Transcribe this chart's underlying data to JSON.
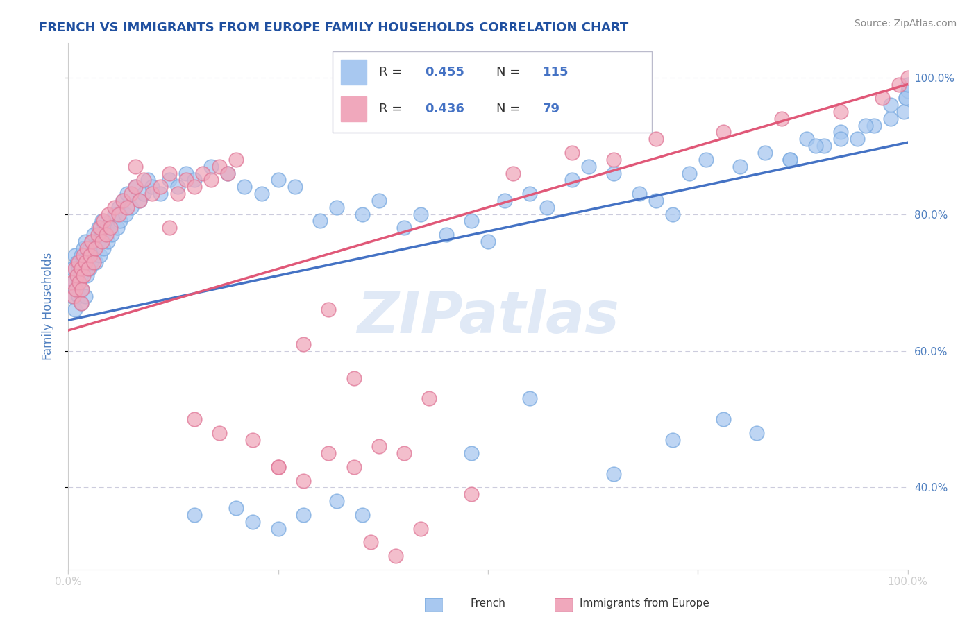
{
  "title": "FRENCH VS IMMIGRANTS FROM EUROPE FAMILY HOUSEHOLDS CORRELATION CHART",
  "source": "Source: ZipAtlas.com",
  "ylabel": "Family Households",
  "xlim": [
    0.0,
    1.0
  ],
  "ylim": [
    0.28,
    1.05
  ],
  "x_tick_labels": [
    "0.0%",
    "",
    "",
    "",
    "100.0%"
  ],
  "x_tick_vals": [
    0.0,
    0.25,
    0.5,
    0.75,
    1.0
  ],
  "y_tick_labels_right": [
    "40.0%",
    "60.0%",
    "80.0%",
    "100.0%"
  ],
  "y_tick_vals_right": [
    0.4,
    0.6,
    0.8,
    1.0
  ],
  "blue_color": "#A8C8F0",
  "pink_color": "#F0A8BC",
  "blue_line_color": "#4472C4",
  "pink_line_color": "#E05878",
  "blue_edge_color": "#7AAAE0",
  "pink_edge_color": "#E07898",
  "watermark_color": "#C8D8F0",
  "title_color": "#2050A0",
  "axis_label_color": "#5080C0",
  "source_color": "#888888",
  "legend_text_color": "#333333",
  "legend_value_color": "#4472C4",
  "grid_color": "#CCCCDD",
  "spine_color": "#CCCCCC",
  "blue_scatter_x": [
    0.005,
    0.005,
    0.007,
    0.008,
    0.008,
    0.009,
    0.01,
    0.01,
    0.012,
    0.012,
    0.013,
    0.015,
    0.015,
    0.015,
    0.016,
    0.018,
    0.018,
    0.02,
    0.02,
    0.02,
    0.022,
    0.022,
    0.025,
    0.025,
    0.027,
    0.028,
    0.03,
    0.03,
    0.032,
    0.033,
    0.035,
    0.036,
    0.038,
    0.04,
    0.04,
    0.042,
    0.045,
    0.047,
    0.05,
    0.052,
    0.055,
    0.058,
    0.06,
    0.062,
    0.065,
    0.068,
    0.07,
    0.075,
    0.08,
    0.085,
    0.09,
    0.095,
    0.1,
    0.11,
    0.12,
    0.13,
    0.14,
    0.15,
    0.17,
    0.19,
    0.21,
    0.23,
    0.25,
    0.27,
    0.3,
    0.32,
    0.35,
    0.37,
    0.4,
    0.42,
    0.45,
    0.48,
    0.5,
    0.52,
    0.55,
    0.57,
    0.6,
    0.62,
    0.65,
    0.68,
    0.7,
    0.72,
    0.74,
    0.76,
    0.8,
    0.83,
    0.86,
    0.88,
    0.9,
    0.92,
    0.94,
    0.96,
    0.98,
    0.995,
    0.998,
    1.0,
    0.15,
    0.2,
    0.22,
    0.25,
    0.28,
    0.32,
    0.35,
    0.48,
    0.55,
    0.65,
    0.72,
    0.78,
    0.82,
    0.86,
    0.89,
    0.92,
    0.95,
    0.98,
    0.998,
    1.0
  ],
  "blue_scatter_y": [
    0.68,
    0.72,
    0.7,
    0.66,
    0.74,
    0.69,
    0.71,
    0.73,
    0.68,
    0.72,
    0.7,
    0.67,
    0.71,
    0.74,
    0.69,
    0.72,
    0.75,
    0.68,
    0.73,
    0.76,
    0.71,
    0.74,
    0.72,
    0.75,
    0.73,
    0.76,
    0.74,
    0.77,
    0.75,
    0.73,
    0.76,
    0.78,
    0.74,
    0.77,
    0.79,
    0.75,
    0.78,
    0.76,
    0.79,
    0.77,
    0.8,
    0.78,
    0.81,
    0.79,
    0.82,
    0.8,
    0.83,
    0.81,
    0.84,
    0.82,
    0.83,
    0.85,
    0.84,
    0.83,
    0.85,
    0.84,
    0.86,
    0.85,
    0.87,
    0.86,
    0.84,
    0.83,
    0.85,
    0.84,
    0.79,
    0.81,
    0.8,
    0.82,
    0.78,
    0.8,
    0.77,
    0.79,
    0.76,
    0.82,
    0.83,
    0.81,
    0.85,
    0.87,
    0.86,
    0.83,
    0.82,
    0.8,
    0.86,
    0.88,
    0.87,
    0.89,
    0.88,
    0.91,
    0.9,
    0.92,
    0.91,
    0.93,
    0.94,
    0.95,
    0.97,
    0.98,
    0.36,
    0.37,
    0.35,
    0.34,
    0.36,
    0.38,
    0.36,
    0.45,
    0.53,
    0.42,
    0.47,
    0.5,
    0.48,
    0.88,
    0.9,
    0.91,
    0.93,
    0.96,
    0.97,
    0.99
  ],
  "pink_scatter_x": [
    0.005,
    0.006,
    0.008,
    0.009,
    0.01,
    0.012,
    0.013,
    0.015,
    0.015,
    0.016,
    0.018,
    0.018,
    0.02,
    0.022,
    0.024,
    0.026,
    0.028,
    0.03,
    0.032,
    0.035,
    0.038,
    0.04,
    0.042,
    0.045,
    0.048,
    0.05,
    0.055,
    0.06,
    0.065,
    0.07,
    0.075,
    0.08,
    0.085,
    0.09,
    0.1,
    0.11,
    0.12,
    0.13,
    0.14,
    0.15,
    0.16,
    0.17,
    0.18,
    0.19,
    0.2,
    0.08,
    0.12,
    0.15,
    0.18,
    0.22,
    0.25,
    0.28,
    0.31,
    0.34,
    0.37,
    0.4,
    0.43,
    0.48,
    0.53,
    0.6,
    0.65,
    0.7,
    0.78,
    0.85,
    0.92,
    0.97,
    0.99,
    1.0,
    0.25,
    0.28,
    0.31,
    0.34,
    0.36,
    0.39,
    0.42
  ],
  "pink_scatter_y": [
    0.7,
    0.68,
    0.72,
    0.69,
    0.71,
    0.73,
    0.7,
    0.67,
    0.72,
    0.69,
    0.74,
    0.71,
    0.73,
    0.75,
    0.72,
    0.74,
    0.76,
    0.73,
    0.75,
    0.77,
    0.78,
    0.76,
    0.79,
    0.77,
    0.8,
    0.78,
    0.81,
    0.8,
    0.82,
    0.81,
    0.83,
    0.84,
    0.82,
    0.85,
    0.83,
    0.84,
    0.86,
    0.83,
    0.85,
    0.84,
    0.86,
    0.85,
    0.87,
    0.86,
    0.88,
    0.87,
    0.78,
    0.5,
    0.48,
    0.47,
    0.43,
    0.61,
    0.66,
    0.56,
    0.46,
    0.45,
    0.53,
    0.39,
    0.86,
    0.89,
    0.88,
    0.91,
    0.92,
    0.94,
    0.95,
    0.97,
    0.99,
    1.0,
    0.43,
    0.41,
    0.45,
    0.43,
    0.32,
    0.3,
    0.34
  ],
  "blue_line": [
    [
      0.0,
      0.645
    ],
    [
      1.0,
      0.905
    ]
  ],
  "pink_line": [
    [
      0.0,
      0.63
    ],
    [
      1.0,
      0.99
    ]
  ]
}
